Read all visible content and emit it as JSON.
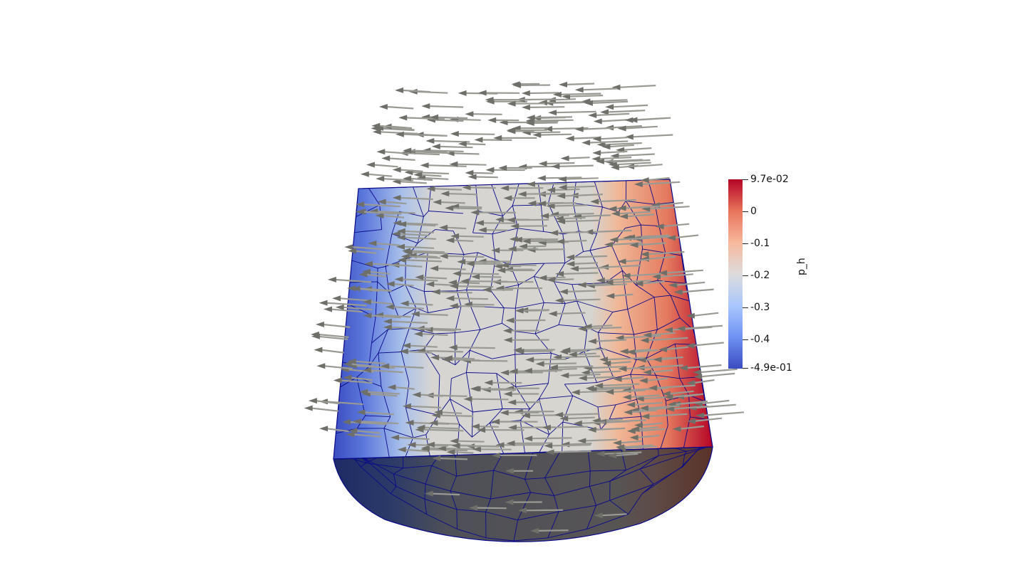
{
  "colorbar": {
    "title": "p_h",
    "colormap": [
      "#3b4cc0",
      "#6f92f3",
      "#aac7fd",
      "#dddcdc",
      "#f7b89c",
      "#e7745b",
      "#b40426"
    ],
    "labels": [
      "9.7e-02",
      "0",
      "-0.1",
      "-0.2",
      "-0.3",
      "-0.4",
      "-4.9e-01"
    ],
    "max": 0.097,
    "min": -0.49
  },
  "scene": {
    "mesh_edge_color": "#0a0a8a",
    "arrow_color": "#9a9a94",
    "bottom_face_shade": "#555555"
  }
}
